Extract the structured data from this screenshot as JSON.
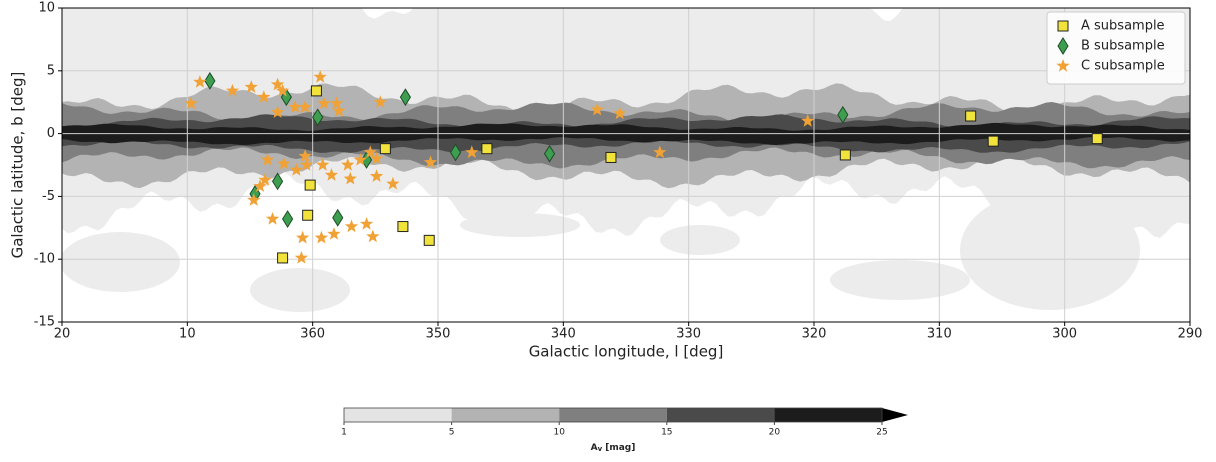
{
  "chart_data": {
    "type": "scatter",
    "xlabel": "Galactic longitude, l [deg]",
    "ylabel": "Galactic latitude, b [deg]",
    "xlim": [
      380,
      290
    ],
    "ylim": [
      -15,
      10
    ],
    "xticks": [
      {
        "value": 380,
        "label": "20"
      },
      {
        "value": 370,
        "label": "10"
      },
      360,
      350,
      340,
      330,
      320,
      310,
      300,
      290
    ],
    "yticks": [
      -15,
      -10,
      -5,
      0,
      5,
      10
    ],
    "grid": true,
    "legend": "upper right",
    "series": [
      {
        "name": "A subsample",
        "color": "#f2e23c",
        "marker": "square",
        "x": [
          359.7,
          354.2,
          346.1,
          336.2,
          317.5,
          307.5,
          305.7,
          297.4,
          360.2,
          360.4,
          362.4,
          352.8,
          350.7
        ],
        "values": [
          3.4,
          -1.2,
          -1.2,
          -1.9,
          -1.7,
          1.4,
          -0.6,
          -0.4,
          -4.1,
          -6.5,
          -9.9,
          -7.4,
          -8.5
        ]
      },
      {
        "name": "B subsample",
        "color": "#3e9e4f",
        "marker": "diamond",
        "x": [
          368.2,
          362.1,
          359.6,
          352.6,
          348.6,
          341.1,
          317.7,
          364.6,
          362.8,
          362.0,
          358.0,
          355.7
        ],
        "values": [
          4.2,
          2.9,
          1.3,
          2.9,
          -1.5,
          -1.6,
          1.5,
          -4.8,
          -3.8,
          -6.8,
          -6.7,
          -2.1
        ]
      },
      {
        "name": "C subsample",
        "color": "#f0a236",
        "marker": "star",
        "x": [
          369.7,
          369.0,
          366.4,
          364.9,
          363.9,
          362.8,
          362.4,
          362.8,
          361.4,
          360.6,
          359.4,
          359.1,
          358.1,
          357.9,
          354.6,
          337.3,
          335.5,
          320.5,
          332.3,
          347.3,
          350.6,
          363.6,
          362.3,
          360.6,
          360.5,
          361.3,
          359.2,
          358.5,
          357.2,
          357.0,
          356.2,
          355.4,
          354.9,
          354.9,
          353.6,
          363.8,
          364.2,
          364.7,
          363.2,
          360.8,
          360.9,
          359.3,
          358.3,
          356.9,
          355.7,
          355.2
        ],
        "values": [
          2.4,
          4.1,
          3.4,
          3.7,
          2.9,
          3.9,
          3.4,
          1.7,
          2.1,
          2.1,
          4.5,
          2.4,
          2.4,
          1.8,
          2.5,
          1.9,
          1.6,
          1.0,
          -1.5,
          -1.5,
          -2.3,
          -2.1,
          -2.4,
          -1.8,
          -2.5,
          -2.9,
          -2.5,
          -3.3,
          -2.5,
          -3.6,
          -2.1,
          -1.5,
          -2.0,
          -3.4,
          -4.0,
          -3.7,
          -4.2,
          -5.3,
          -6.8,
          -8.3,
          -9.9,
          -8.3,
          -8.0,
          -7.4,
          -7.2,
          -8.2
        ]
      }
    ],
    "colorbar": {
      "label": {
        "main": "A",
        "sub": "v",
        "rest": "[mag]"
      },
      "levels": [
        1,
        5,
        10,
        15,
        20,
        25
      ],
      "colors": [
        "#e4e4e4",
        "#b3b3b3",
        "#7f7f7f",
        "#4a4a4a",
        "#1c1c1c",
        "#000000"
      ],
      "extend": "max"
    }
  }
}
